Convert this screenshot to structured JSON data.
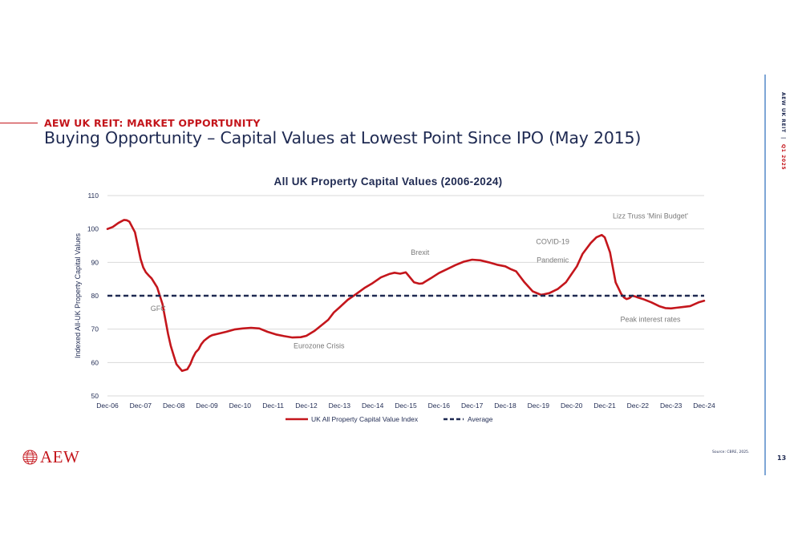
{
  "header": {
    "section_title": "AEW UK REIT: MARKET OPPORTUNITY",
    "main_title": "Buying Opportunity – Capital Values at Lowest Point Since IPO (May 2015)"
  },
  "sidebar": {
    "company": "AEW UK REIT",
    "separator": "|",
    "period": "Q1 2025"
  },
  "footer": {
    "logo_text": "AEW",
    "source": "Source: CBRE, 2025.",
    "page_number": "13"
  },
  "colors": {
    "accent": "#c4161c",
    "navy": "#1f2a52",
    "sidebar_rule": "#7ea6d6",
    "grid": "#d9d9d9"
  },
  "chart_data": {
    "type": "line",
    "title": "All UK Property Capital Values (2006-2024)",
    "xlabel": "",
    "ylabel": "Indexed All-UK Property Capital Values",
    "ylim": [
      50,
      110
    ],
    "yticks": [
      50,
      60,
      70,
      80,
      90,
      100,
      110
    ],
    "xlim": [
      2006.92,
      2024.92
    ],
    "x_tick_labels": [
      "Dec-06",
      "Dec-07",
      "Dec-08",
      "Dec-09",
      "Dec-10",
      "Dec-11",
      "Dec-12",
      "Dec-13",
      "Dec-14",
      "Dec-15",
      "Dec-16",
      "Dec-17",
      "Dec-18",
      "Dec-19",
      "Dec-20",
      "Dec-21",
      "Dec-22",
      "Dec-23",
      "Dec-24"
    ],
    "grid": "horizontal",
    "legend_position": "bottom",
    "series": [
      {
        "name": "UK All Property Capital Value Index",
        "color": "#c4161c",
        "style": "solid",
        "x": [
          2006.92,
          2007.08,
          2007.25,
          2007.42,
          2007.5,
          2007.58,
          2007.75,
          2007.92,
          2008.0,
          2008.08,
          2008.17,
          2008.25,
          2008.42,
          2008.58,
          2008.75,
          2008.83,
          2008.92,
          2009.0,
          2009.17,
          2009.33,
          2009.42,
          2009.5,
          2009.58,
          2009.67,
          2009.75,
          2009.83,
          2009.92,
          2010.0,
          2010.08,
          2010.25,
          2010.5,
          2010.75,
          2011.0,
          2011.25,
          2011.5,
          2011.75,
          2012.0,
          2012.25,
          2012.5,
          2012.75,
          2012.92,
          2013.17,
          2013.42,
          2013.58,
          2013.75,
          2013.92,
          2014.17,
          2014.42,
          2014.67,
          2014.92,
          2015.17,
          2015.42,
          2015.58,
          2015.75,
          2015.92,
          2016.17,
          2016.33,
          2016.42,
          2016.5,
          2016.67,
          2016.92,
          2017.17,
          2017.42,
          2017.67,
          2017.92,
          2018.17,
          2018.42,
          2018.67,
          2018.92,
          2019.08,
          2019.25,
          2019.5,
          2019.75,
          2019.92,
          2020.0,
          2020.08,
          2020.25,
          2020.5,
          2020.75,
          2020.92,
          2021.08,
          2021.25,
          2021.5,
          2021.67,
          2021.83,
          2021.92,
          2022.08,
          2022.25,
          2022.42,
          2022.5,
          2022.58,
          2022.67,
          2022.75,
          2022.83,
          2022.92,
          2023.08,
          2023.33,
          2023.58,
          2023.75,
          2023.92,
          2024.08,
          2024.25,
          2024.5,
          2024.75,
          2024.92
        ],
        "values": [
          100.0,
          100.6,
          101.8,
          102.7,
          102.6,
          102.2,
          99.0,
          91.0,
          88.5,
          87.0,
          86.0,
          85.2,
          82.5,
          77.5,
          68.5,
          65.0,
          62.0,
          59.5,
          57.5,
          58.0,
          59.5,
          61.5,
          63.0,
          64.0,
          65.5,
          66.5,
          67.2,
          67.8,
          68.2,
          68.6,
          69.2,
          69.9,
          70.2,
          70.4,
          70.2,
          69.2,
          68.4,
          67.9,
          67.5,
          67.6,
          68.0,
          69.5,
          71.5,
          72.8,
          75.0,
          76.5,
          78.8,
          80.5,
          82.3,
          83.8,
          85.5,
          86.5,
          86.9,
          86.6,
          87.0,
          84.0,
          83.6,
          83.7,
          84.2,
          85.2,
          86.8,
          88.0,
          89.2,
          90.2,
          90.8,
          90.6,
          90.0,
          89.3,
          88.8,
          88.0,
          87.3,
          84.0,
          81.3,
          80.6,
          80.3,
          80.4,
          80.8,
          82.0,
          84.0,
          86.5,
          88.8,
          92.5,
          95.8,
          97.5,
          98.2,
          97.5,
          93.0,
          84.0,
          80.5,
          79.5,
          79.0,
          79.3,
          80.0,
          79.8,
          79.5,
          79.0,
          78.0,
          76.8,
          76.3,
          76.2,
          76.4,
          76.6,
          76.9,
          78.0,
          78.5
        ]
      },
      {
        "name": "Average",
        "color": "#1f2a52",
        "style": "dashed",
        "x": [
          2006.92,
          2024.92
        ],
        "values": [
          80,
          80
        ]
      }
    ],
    "annotations": [
      {
        "text": "GFC",
        "x": 2008.45,
        "y": 75.5
      },
      {
        "text": "Eurozone Crisis",
        "x": 2013.3,
        "y": 64.3
      },
      {
        "text": "Brexit",
        "x": 2016.35,
        "y": 92.2
      },
      {
        "text": "COVID-19",
        "x": 2020.35,
        "y": 95.5
      },
      {
        "text": "Pandemic",
        "x": 2020.35,
        "y": 90.0
      },
      {
        "text": "Lizz Truss 'Mini Budget'",
        "x": 2023.3,
        "y": 103.2
      },
      {
        "text": "Peak interest rates",
        "x": 2023.3,
        "y": 72.2
      }
    ]
  }
}
